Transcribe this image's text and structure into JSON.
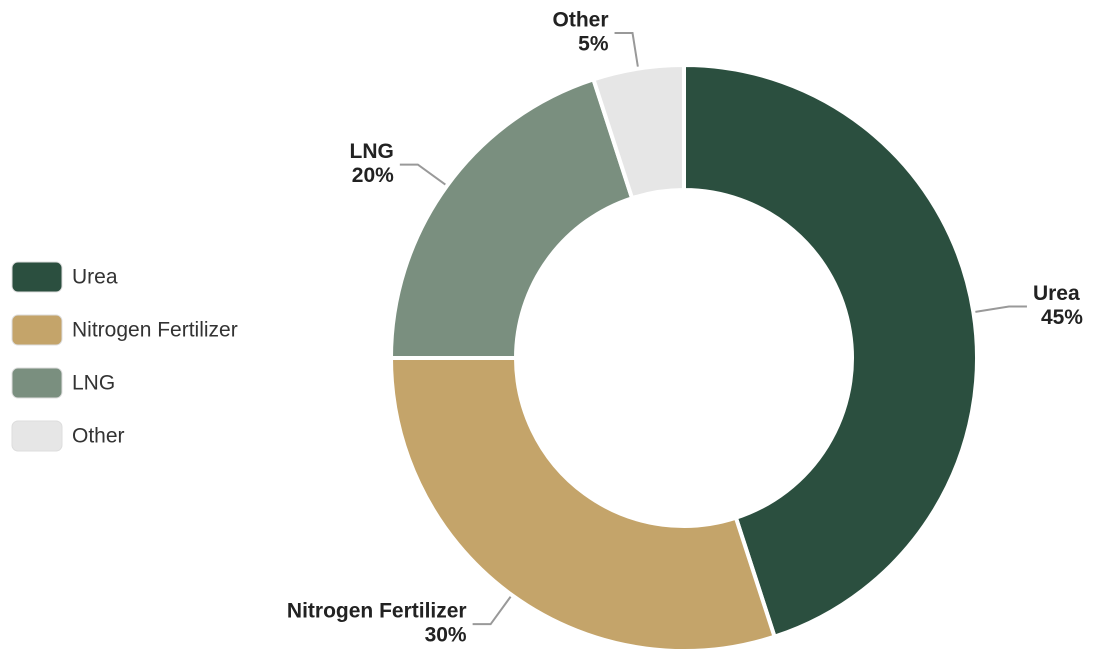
{
  "chart_data": {
    "type": "donut",
    "categories": [
      "Urea",
      "Nitrogen Fertilizer",
      "LNG",
      "Other"
    ],
    "values": [
      45,
      30,
      20,
      5
    ],
    "value_labels": [
      "45%",
      "30%",
      "20%",
      "5%"
    ],
    "colors": [
      "#2b4f3f",
      "#c4a46a",
      "#7a8f7f",
      "#e6e6e6"
    ],
    "legend": "left"
  }
}
